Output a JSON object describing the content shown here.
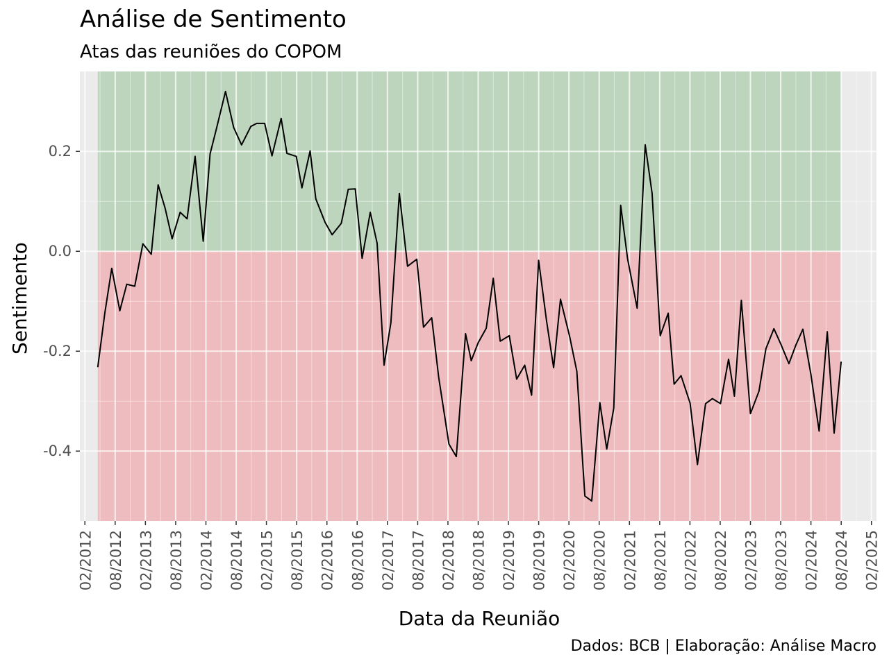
{
  "chart_data": {
    "type": "line",
    "title": "Análise de Sentimento",
    "subtitle": "Atas das reuniões do COPOM",
    "xlabel": "Data da Reunião",
    "ylabel": "Sentimento",
    "caption": "Dados: BCB | Elaboração: Análise Macro",
    "x_ticks": [
      "02/2012",
      "08/2012",
      "02/2013",
      "08/2013",
      "02/2014",
      "08/2014",
      "02/2015",
      "08/2015",
      "02/2016",
      "08/2016",
      "02/2017",
      "08/2017",
      "02/2018",
      "08/2018",
      "02/2019",
      "08/2019",
      "02/2020",
      "08/2020",
      "02/2021",
      "08/2021",
      "02/2022",
      "08/2022",
      "02/2023",
      "08/2023",
      "02/2024",
      "08/2024",
      "02/2025"
    ],
    "y_ticks": [
      0.2,
      0.0,
      -0.2,
      -0.4
    ],
    "y_tick_labels": [
      "0.2",
      "0.0",
      "-0.2",
      "-0.4"
    ],
    "ylim": [
      -0.54,
      0.36
    ],
    "xlim": [
      "2012-01",
      "2025-03"
    ],
    "grid": true,
    "background": "#EBEBEB",
    "regions": [
      {
        "from": 0.0,
        "to": 0.36,
        "color": "#BDD5BD"
      },
      {
        "from": -0.54,
        "to": 0.0,
        "color": "#EEBCBE"
      }
    ],
    "line_color": "#000000",
    "series": [
      {
        "x": [
          "2012-04-18",
          "2012-05-30",
          "2012-07-11",
          "2012-08-29",
          "2012-10-10",
          "2012-11-28",
          "2013-01-16",
          "2013-03-06",
          "2013-04-17",
          "2013-05-29",
          "2013-07-10",
          "2013-08-28",
          "2013-10-09",
          "2013-11-27",
          "2014-01-15",
          "2014-02-26",
          "2014-04-02",
          "2014-05-28",
          "2014-07-16",
          "2014-09-03",
          "2014-10-29",
          "2014-12-03",
          "2015-01-21",
          "2015-03-04",
          "2015-04-29",
          "2015-06-03",
          "2015-07-29",
          "2015-09-02",
          "2015-10-21",
          "2015-11-25",
          "2016-01-20",
          "2016-03-02",
          "2016-04-27",
          "2016-06-08",
          "2016-07-20",
          "2016-08-31",
          "2016-10-19",
          "2016-11-30",
          "2017-01-11",
          "2017-02-22",
          "2017-04-12",
          "2017-05-31",
          "2017-07-26",
          "2017-09-06",
          "2017-10-25",
          "2017-12-06",
          "2018-02-07",
          "2018-03-21",
          "2018-05-16",
          "2018-06-20",
          "2018-08-01",
          "2018-09-19",
          "2018-10-31",
          "2018-12-12",
          "2019-02-06",
          "2019-03-20",
          "2019-05-08",
          "2019-06-19",
          "2019-07-31",
          "2019-09-18",
          "2019-10-30",
          "2019-12-11",
          "2020-02-05",
          "2020-03-18",
          "2020-05-06",
          "2020-06-17",
          "2020-08-05",
          "2020-09-16",
          "2020-10-28",
          "2020-12-09",
          "2021-01-20",
          "2021-03-17",
          "2021-05-05",
          "2021-06-16",
          "2021-08-04",
          "2021-09-22",
          "2021-10-27",
          "2021-12-08",
          "2022-02-02",
          "2022-03-16",
          "2022-05-04",
          "2022-06-15",
          "2022-08-03",
          "2022-09-21",
          "2022-10-26",
          "2022-12-07",
          "2023-02-01",
          "2023-03-22",
          "2023-05-03",
          "2023-06-21",
          "2023-08-02",
          "2023-09-20",
          "2023-11-01",
          "2023-12-13",
          "2024-01-31",
          "2024-03-20",
          "2024-05-08",
          "2024-06-19",
          "2024-07-31"
        ],
        "values": [
          -0.232,
          -0.123,
          -0.034,
          -0.119,
          -0.066,
          -0.07,
          0.015,
          -0.006,
          0.133,
          0.086,
          0.025,
          0.078,
          0.065,
          0.19,
          0.02,
          0.195,
          0.243,
          0.32,
          0.248,
          0.213,
          0.25,
          0.256,
          0.256,
          0.191,
          0.266,
          0.196,
          0.19,
          0.127,
          0.201,
          0.105,
          0.058,
          0.033,
          0.056,
          0.124,
          0.125,
          -0.014,
          0.078,
          0.016,
          -0.228,
          -0.143,
          0.116,
          -0.03,
          -0.016,
          -0.152,
          -0.133,
          -0.252,
          -0.386,
          -0.411,
          -0.165,
          -0.219,
          -0.183,
          -0.154,
          -0.054,
          -0.18,
          -0.169,
          -0.256,
          -0.228,
          -0.288,
          -0.018,
          -0.139,
          -0.233,
          -0.096,
          -0.17,
          -0.24,
          -0.49,
          -0.5,
          -0.303,
          -0.396,
          -0.314,
          0.092,
          -0.015,
          -0.114,
          0.213,
          0.116,
          -0.169,
          -0.124,
          -0.266,
          -0.249,
          -0.304,
          -0.427,
          -0.305,
          -0.295,
          -0.305,
          -0.216,
          -0.29,
          -0.098,
          -0.325,
          -0.28,
          -0.195,
          -0.155,
          -0.186,
          -0.225,
          -0.188,
          -0.156,
          -0.246,
          -0.36,
          -0.161,
          -0.364,
          -0.221
        ]
      }
    ]
  }
}
